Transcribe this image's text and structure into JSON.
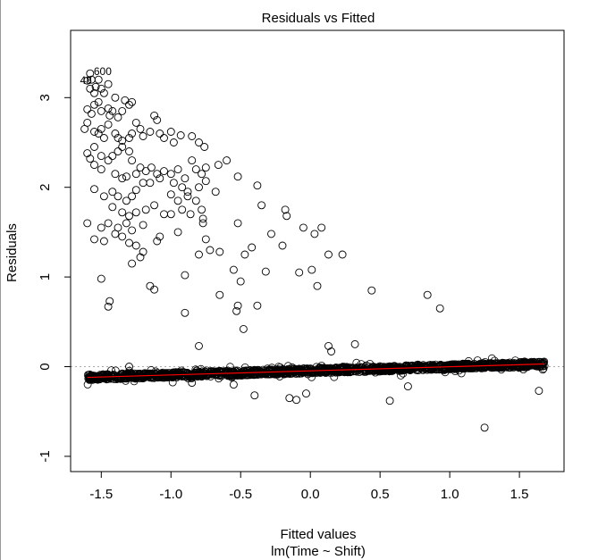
{
  "chart_data": {
    "type": "scatter",
    "title": "Residuals vs Fitted",
    "xlabel": "Fitted values",
    "subtitle": "lm(Time ~ Shift)",
    "ylabel": "Residuals",
    "xlim": [
      -1.72,
      1.82
    ],
    "ylim": [
      -1.17,
      3.75
    ],
    "x_ticks": [
      -1.5,
      -1.0,
      -0.5,
      0.0,
      0.5,
      1.0,
      1.5
    ],
    "x_tick_labels": [
      "-1.5",
      "-1.0",
      "-0.5",
      "0.0",
      "0.5",
      "1.0",
      "1.5"
    ],
    "y_ticks": [
      -1,
      0,
      1,
      2,
      3
    ],
    "y_tick_labels": [
      "-1",
      "0",
      "1",
      "2",
      "3"
    ],
    "reference_line_y": 0,
    "smoother_color": "#ff0000",
    "point_labels": [
      {
        "text": "48",
        "x": -1.61,
        "y": 3.19
      },
      {
        "text": "600",
        "x": -1.49,
        "y": 3.29
      }
    ],
    "bulk_band": {
      "note": "dense band of thousands of points",
      "x_range": [
        -1.6,
        1.68
      ],
      "y_at_xmin": -0.12,
      "y_at_xmax": 0.03
    },
    "points": [
      [
        -1.58,
        3.27
      ],
      [
        -1.6,
        3.19
      ],
      [
        -1.57,
        3.2
      ],
      [
        -1.54,
        3.12
      ],
      [
        -1.52,
        3.2
      ],
      [
        -1.5,
        3.1
      ],
      [
        -1.45,
        3.15
      ],
      [
        -1.58,
        3.1
      ],
      [
        -1.55,
        3.05
      ],
      [
        -1.48,
        3.05
      ],
      [
        -1.52,
        2.95
      ],
      [
        -1.55,
        2.92
      ],
      [
        -1.6,
        2.87
      ],
      [
        -1.57,
        2.82
      ],
      [
        -1.5,
        2.85
      ],
      [
        -1.45,
        2.88
      ],
      [
        -1.42,
        2.85
      ],
      [
        -1.44,
        2.8
      ],
      [
        -1.38,
        2.78
      ],
      [
        -1.35,
        2.85
      ],
      [
        -1.3,
        2.92
      ],
      [
        -1.33,
        2.97
      ],
      [
        -1.28,
        2.95
      ],
      [
        -1.4,
        3.0
      ],
      [
        -1.6,
        2.72
      ],
      [
        -1.62,
        2.65
      ],
      [
        -1.55,
        2.62
      ],
      [
        -1.52,
        2.6
      ],
      [
        -1.5,
        2.65
      ],
      [
        -1.45,
        2.7
      ],
      [
        -1.48,
        2.55
      ],
      [
        -1.4,
        2.6
      ],
      [
        -1.38,
        2.55
      ],
      [
        -1.35,
        2.52
      ],
      [
        -1.3,
        2.55
      ],
      [
        -1.28,
        2.6
      ],
      [
        -1.25,
        2.72
      ],
      [
        -1.22,
        2.65
      ],
      [
        -1.2,
        2.57
      ],
      [
        -1.15,
        2.62
      ],
      [
        -1.12,
        2.8
      ],
      [
        -1.1,
        2.75
      ],
      [
        -1.08,
        2.6
      ],
      [
        -1.05,
        2.55
      ],
      [
        -1.0,
        2.62
      ],
      [
        -0.98,
        2.5
      ],
      [
        -0.93,
        2.58
      ],
      [
        -0.85,
        2.57
      ],
      [
        -0.8,
        2.5
      ],
      [
        -0.76,
        2.45
      ],
      [
        -0.6,
        2.3
      ],
      [
        -0.66,
        2.25
      ],
      [
        -1.6,
        2.38
      ],
      [
        -1.58,
        2.32
      ],
      [
        -1.55,
        2.45
      ],
      [
        -1.5,
        2.35
      ],
      [
        -1.45,
        2.3
      ],
      [
        -1.42,
        2.35
      ],
      [
        -1.38,
        2.4
      ],
      [
        -1.35,
        2.45
      ],
      [
        -1.3,
        2.4
      ],
      [
        -1.28,
        2.3
      ],
      [
        -1.22,
        2.22
      ],
      [
        -1.18,
        2.18
      ],
      [
        -1.14,
        2.22
      ],
      [
        -1.1,
        2.15
      ],
      [
        -1.05,
        2.18
      ],
      [
        -1.0,
        2.15
      ],
      [
        -0.95,
        2.2
      ],
      [
        -0.9,
        2.1
      ],
      [
        -0.85,
        2.3
      ],
      [
        -0.82,
        2.2
      ],
      [
        -0.78,
        2.15
      ],
      [
        -0.75,
        2.22
      ],
      [
        -1.55,
        2.25
      ],
      [
        -1.5,
        2.2
      ],
      [
        -1.4,
        2.15
      ],
      [
        -1.35,
        2.1
      ],
      [
        -1.32,
        2.12
      ],
      [
        -1.25,
        2.15
      ],
      [
        -1.2,
        2.05
      ],
      [
        -1.15,
        2.05
      ],
      [
        -1.08,
        2.1
      ],
      [
        -0.98,
        2.05
      ],
      [
        -0.92,
        2.0
      ],
      [
        -0.88,
        1.95
      ],
      [
        -0.8,
        2.0
      ],
      [
        -0.75,
        2.07
      ],
      [
        -0.68,
        1.95
      ],
      [
        -0.52,
        2.12
      ],
      [
        -0.38,
        2.02
      ],
      [
        -1.55,
        1.98
      ],
      [
        -1.48,
        1.9
      ],
      [
        -1.42,
        1.95
      ],
      [
        -1.38,
        1.9
      ],
      [
        -1.32,
        1.85
      ],
      [
        -1.28,
        1.9
      ],
      [
        -1.25,
        1.97
      ],
      [
        -1.0,
        1.92
      ],
      [
        -0.95,
        1.85
      ],
      [
        -0.88,
        1.9
      ],
      [
        -0.82,
        1.85
      ],
      [
        -0.78,
        1.75
      ],
      [
        -1.42,
        1.78
      ],
      [
        -1.35,
        1.72
      ],
      [
        -1.3,
        1.68
      ],
      [
        -1.25,
        1.72
      ],
      [
        -1.18,
        1.75
      ],
      [
        -1.12,
        1.8
      ],
      [
        -1.05,
        1.7
      ],
      [
        -1.0,
        1.7
      ],
      [
        -0.92,
        1.75
      ],
      [
        -0.86,
        1.7
      ],
      [
        -0.77,
        1.65
      ],
      [
        -1.6,
        1.6
      ],
      [
        -1.5,
        1.55
      ],
      [
        -1.45,
        1.6
      ],
      [
        -1.38,
        1.55
      ],
      [
        -1.32,
        1.6
      ],
      [
        -1.28,
        1.52
      ],
      [
        -1.2,
        1.58
      ],
      [
        -0.95,
        1.5
      ],
      [
        -0.77,
        1.6
      ],
      [
        -0.52,
        1.6
      ],
      [
        -0.35,
        1.8
      ],
      [
        -0.18,
        1.75
      ],
      [
        -0.17,
        1.68
      ],
      [
        -0.28,
        1.48
      ],
      [
        -0.05,
        1.55
      ],
      [
        0.03,
        1.48
      ],
      [
        0.08,
        1.55
      ],
      [
        -0.42,
        1.33
      ],
      [
        -0.2,
        1.35
      ],
      [
        -1.55,
        1.42
      ],
      [
        -1.48,
        1.4
      ],
      [
        -1.4,
        1.48
      ],
      [
        -1.35,
        1.45
      ],
      [
        -1.3,
        1.38
      ],
      [
        -1.25,
        1.35
      ],
      [
        -1.2,
        1.28
      ],
      [
        -1.1,
        1.4
      ],
      [
        -1.08,
        1.45
      ],
      [
        -0.75,
        1.42
      ],
      [
        -1.22,
        1.22
      ],
      [
        -1.28,
        1.15
      ],
      [
        -0.8,
        1.25
      ],
      [
        -0.72,
        1.3
      ],
      [
        -0.65,
        1.28
      ],
      [
        -0.47,
        1.25
      ],
      [
        -0.32,
        1.06
      ],
      [
        0.13,
        1.25
      ],
      [
        0.23,
        1.25
      ],
      [
        -0.55,
        1.08
      ],
      [
        -0.08,
        1.05
      ],
      [
        0.01,
        1.08
      ],
      [
        -0.9,
        1.02
      ],
      [
        -1.5,
        0.98
      ],
      [
        -1.15,
        0.9
      ],
      [
        -1.12,
        0.86
      ],
      [
        -0.5,
        0.95
      ],
      [
        0.05,
        0.9
      ],
      [
        -0.65,
        0.8
      ],
      [
        0.44,
        0.85
      ],
      [
        0.84,
        0.8
      ],
      [
        -1.44,
        0.73
      ],
      [
        -1.45,
        0.67
      ],
      [
        -0.52,
        0.68
      ],
      [
        -0.53,
        0.62
      ],
      [
        -0.38,
        0.68
      ],
      [
        -0.9,
        0.6
      ],
      [
        0.93,
        0.65
      ],
      [
        -0.48,
        0.42
      ],
      [
        -0.8,
        0.23
      ],
      [
        0.13,
        0.23
      ],
      [
        0.15,
        0.17
      ],
      [
        0.32,
        0.25
      ],
      [
        -1.3,
        0.0
      ],
      [
        -0.4,
        -0.32
      ],
      [
        -0.15,
        -0.35
      ],
      [
        -0.1,
        -0.37
      ],
      [
        0.57,
        -0.38
      ],
      [
        1.25,
        -0.68
      ],
      [
        1.64,
        -0.27
      ],
      [
        0.7,
        -0.22
      ],
      [
        -0.03,
        -0.3
      ],
      [
        -0.55,
        -0.2
      ],
      [
        -0.85,
        -0.18
      ]
    ]
  }
}
